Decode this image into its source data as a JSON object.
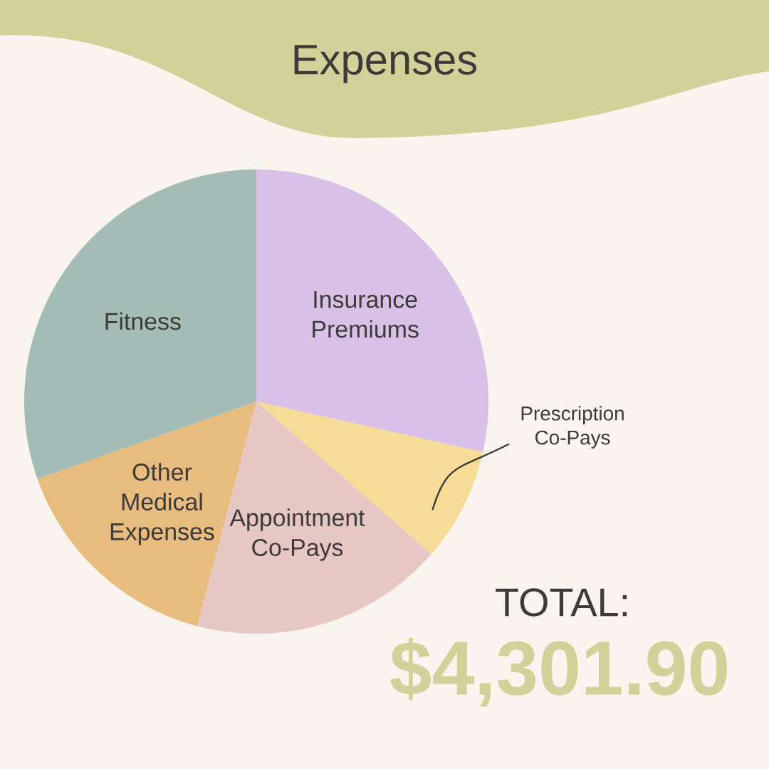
{
  "chart_data": {
    "type": "pie",
    "title": "Expenses",
    "categories": [
      "Insurance Premiums",
      "Prescription Co-Pays",
      "Appointment Co-Pays",
      "Other Medical Expenses",
      "Fitness"
    ],
    "values": [
      28.5,
      7.9,
      17.7,
      15.5,
      30.4
    ],
    "colors": [
      "#d9c0e6",
      "#f6dc97",
      "#e7c7c3",
      "#e8bb7e",
      "#a3bcb5"
    ],
    "annotations": [
      "TOTAL:",
      "$4,301.90"
    ]
  }
}
